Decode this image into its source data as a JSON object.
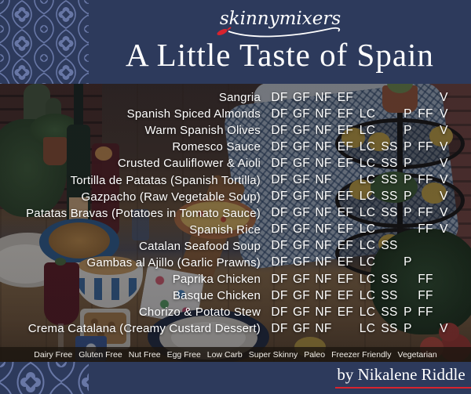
{
  "brand": {
    "logo_text": "skinnymixers",
    "title": "A Little Taste of Spain",
    "byline": "by Nikalene Riddle"
  },
  "code_columns": [
    "DF",
    "GF",
    "NF",
    "EF",
    "LC",
    "SS",
    "P",
    "FF",
    "V"
  ],
  "dishes": [
    {
      "name": "Sangria",
      "codes": [
        "DF",
        "GF",
        "NF",
        "EF",
        "V"
      ]
    },
    {
      "name": "Spanish Spiced Almonds",
      "codes": [
        "DF",
        "GF",
        "NF",
        "EF",
        "LC",
        "P",
        "FF",
        "V"
      ]
    },
    {
      "name": "Warm Spanish Olives",
      "codes": [
        "DF",
        "GF",
        "NF",
        "EF",
        "LC",
        "P",
        "V"
      ]
    },
    {
      "name": "Romesco Sauce",
      "codes": [
        "DF",
        "GF",
        "NF",
        "EF",
        "LC",
        "SS",
        "P",
        "FF",
        "V"
      ]
    },
    {
      "name": "Crusted Cauliflower & Aioli",
      "codes": [
        "DF",
        "GF",
        "NF",
        "EF",
        "LC",
        "SS",
        "P",
        "V"
      ]
    },
    {
      "name": "Tortilla de Patatas (Spanish Tortilla)",
      "codes": [
        "DF",
        "GF",
        "NF",
        "LC",
        "SS",
        "P",
        "FF",
        "V"
      ]
    },
    {
      "name": "Gazpacho (Raw Vegetable Soup)",
      "codes": [
        "DF",
        "GF",
        "NF",
        "EF",
        "LC",
        "SS",
        "P",
        "V"
      ]
    },
    {
      "name": "Patatas Bravas (Potatoes in Tomato Sauce)",
      "codes": [
        "DF",
        "GF",
        "NF",
        "EF",
        "LC",
        "SS",
        "P",
        "FF",
        "V"
      ]
    },
    {
      "name": "Spanish Rice",
      "codes": [
        "DF",
        "GF",
        "NF",
        "EF",
        "LC",
        "FF",
        "V"
      ]
    },
    {
      "name": "Catalan Seafood Soup",
      "codes": [
        "DF",
        "GF",
        "NF",
        "EF",
        "LC",
        "SS"
      ]
    },
    {
      "name": "Gambas al Ajillo (Garlic Prawns)",
      "codes": [
        "DF",
        "GF",
        "NF",
        "EF",
        "LC",
        "P"
      ]
    },
    {
      "name": "Paprika Chicken",
      "codes": [
        "DF",
        "GF",
        "NF",
        "EF",
        "LC",
        "SS",
        "FF"
      ]
    },
    {
      "name": "Basque Chicken",
      "codes": [
        "DF",
        "GF",
        "NF",
        "EF",
        "LC",
        "SS",
        "FF"
      ]
    },
    {
      "name": "Chorizo & Potato Stew",
      "codes": [
        "DF",
        "GF",
        "NF",
        "EF",
        "LC",
        "SS",
        "P",
        "FF"
      ]
    },
    {
      "name": "Crema Catalana (Creamy Custard Dessert)",
      "codes": [
        "DF",
        "GF",
        "NF",
        "LC",
        "SS",
        "P",
        "V"
      ]
    }
  ],
  "legend": [
    "Dairy Free",
    "Gluten Free",
    "Nut Free",
    "Egg Free",
    "Low Carb",
    "Super Skinny",
    "Paleo",
    "Freezer Friendly",
    "Vegetarian"
  ],
  "colors": {
    "navy": "#2d3a5c",
    "pattern_light": "#6877a6",
    "accent_red": "#d8232e",
    "text": "#ffffff"
  }
}
